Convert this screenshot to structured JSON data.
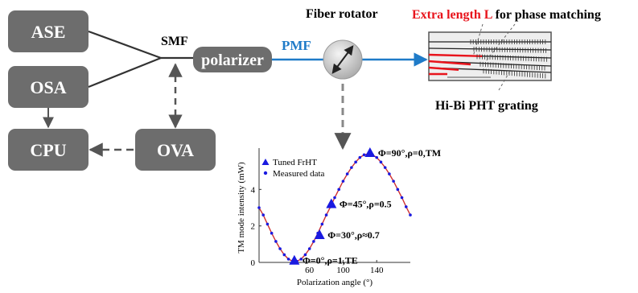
{
  "blocks": {
    "ase": "ASE",
    "osa": "OSA",
    "cpu": "CPU",
    "ova": "OVA",
    "polarizer": "polarizer"
  },
  "labels": {
    "smf": "SMF",
    "pmf": "PMF",
    "fiber_rotator": "Fiber rotator",
    "extra_length": "Extra length L",
    "phase_matching": " for phase matching",
    "grating": "Hi-Bi PHT grating"
  },
  "colors": {
    "box_fill": "#6d6d6d",
    "pmf_line": "#1f7bc8",
    "extra_length": "#e8141c",
    "curve": "#d03030",
    "markers": "#1a1ae0"
  },
  "chart_data": {
    "type": "line",
    "xlabel": "Polarization angle (°)",
    "ylabel": "TM mode intensity (mW)",
    "xlim": [
      0,
      180
    ],
    "ylim": [
      0,
      6
    ],
    "xticks": [
      60,
      100,
      140
    ],
    "yticks": [
      0,
      2,
      4
    ],
    "legend": {
      "placement": "top-left",
      "entries": [
        "Tuned FrHT",
        "Measured data"
      ]
    },
    "series": [
      {
        "name": "Measured data",
        "marker": "dot",
        "x": [
          0,
          5,
          10,
          15,
          20,
          25,
          30,
          35,
          40,
          45,
          50,
          55,
          60,
          65,
          70,
          75,
          80,
          85,
          90,
          95,
          100,
          105,
          110,
          115,
          120,
          125,
          130,
          135,
          140,
          145,
          150,
          155,
          160,
          165,
          170,
          175,
          180
        ],
        "y": [
          3.0,
          2.6,
          2.1,
          1.6,
          1.15,
          0.75,
          0.42,
          0.18,
          0.06,
          0.06,
          0.18,
          0.42,
          0.75,
          1.15,
          1.6,
          2.1,
          2.6,
          3.05,
          3.55,
          4.0,
          4.45,
          4.85,
          5.2,
          5.5,
          5.75,
          5.9,
          5.95,
          5.9,
          5.75,
          5.5,
          5.2,
          4.85,
          4.45,
          4.0,
          3.55,
          3.05,
          2.6
        ]
      },
      {
        "name": "Tuned FrHT",
        "marker": "triangle",
        "x": [
          42,
          72,
          86,
          132
        ],
        "y": [
          0.1,
          1.5,
          3.2,
          6.0
        ],
        "labels": [
          "Φ=0°,ρ=1,TE",
          "Φ=30°,ρ≈0.7",
          "Φ=45°,ρ=0.5",
          "Φ=90°,ρ=0,TM"
        ]
      }
    ]
  }
}
